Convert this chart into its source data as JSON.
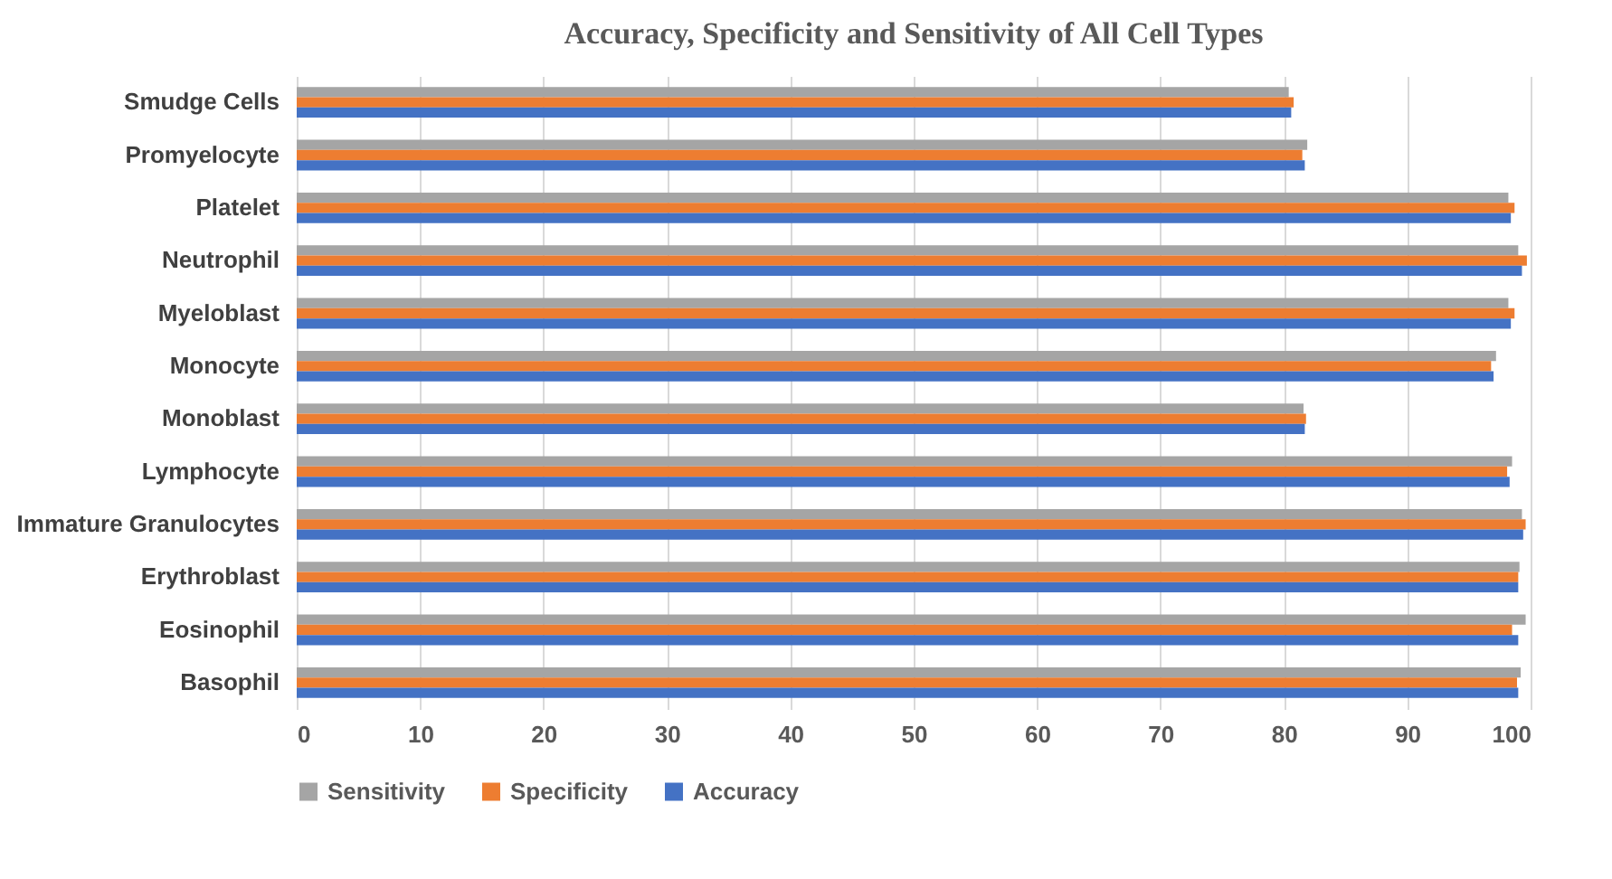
{
  "chart_data": {
    "type": "bar",
    "orientation": "horizontal",
    "title": "Accuracy, Specificity and Sensitivity of All Cell Types",
    "categories": [
      "Smudge Cells",
      "Promyelocyte",
      "Platelet",
      "Neutrophil",
      "Myeloblast",
      "Monocyte",
      "Monoblast",
      "Lymphocyte",
      "Immature Granulocytes",
      "Erythroblast",
      "Eosinophil",
      "Basophil"
    ],
    "series": [
      {
        "name": "Sensitivity",
        "color": "#a5a5a5",
        "values": [
          80.4,
          81.9,
          98.2,
          99.0,
          98.2,
          97.2,
          81.6,
          98.5,
          99.3,
          99.1,
          99.6,
          99.2
        ]
      },
      {
        "name": "Specificity",
        "color": "#ed7d31",
        "values": [
          80.8,
          81.5,
          98.7,
          99.7,
          98.7,
          96.8,
          81.8,
          98.1,
          99.6,
          99.0,
          98.5,
          98.9
        ]
      },
      {
        "name": "Accuracy",
        "color": "#4472c4",
        "values": [
          80.6,
          81.7,
          98.4,
          99.3,
          98.4,
          97.0,
          81.7,
          98.3,
          99.4,
          99.0,
          99.0,
          99.0
        ]
      }
    ],
    "xlim": [
      0,
      100
    ],
    "xticks": [
      0,
      10,
      20,
      30,
      40,
      50,
      60,
      70,
      80,
      90,
      100
    ],
    "grid": "x",
    "legend": "bottom"
  }
}
